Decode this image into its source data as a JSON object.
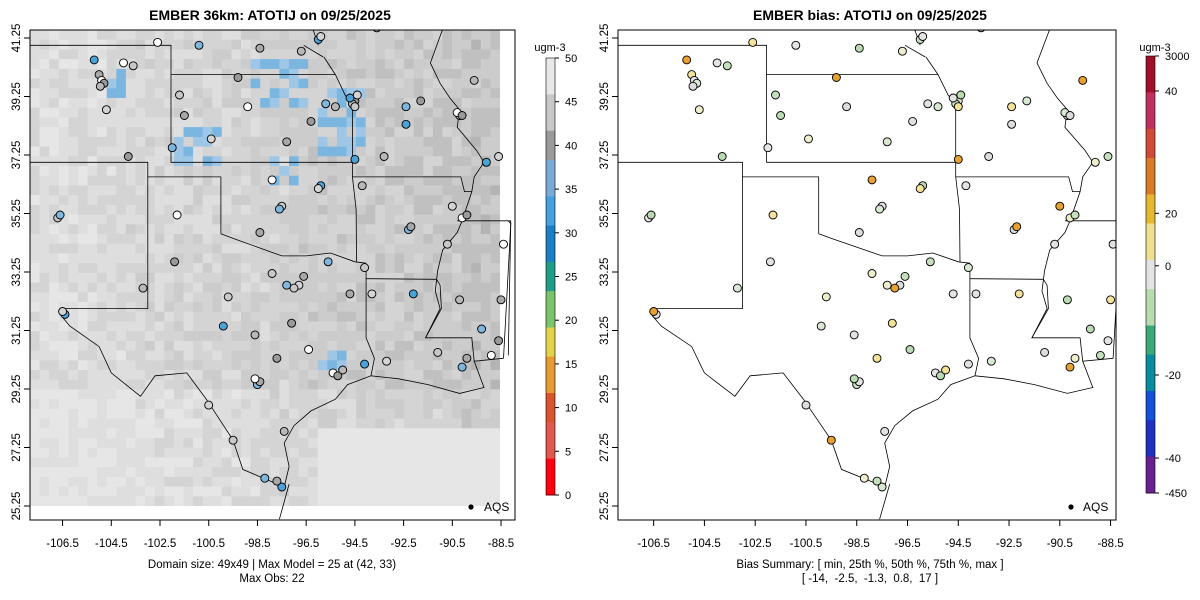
{
  "panels": [
    {
      "title": "EMBER 36km: ATOTIJ on 09/25/2025",
      "colorbar_unit": "ugm-3",
      "colorbar_ticks": [
        "0",
        "5",
        "10",
        "15",
        "20",
        "25",
        "30",
        "35",
        "40",
        "45",
        "50"
      ],
      "colorbar_colors": [
        "#e8e8e8",
        "#c8c8c8",
        "#9a9a9a",
        "#7aaad8",
        "#45a0e0",
        "#1a7fc4",
        "#1f9f8a",
        "#7cc46c",
        "#e4d24a",
        "#e89a34",
        "#d8542e",
        "#e2584e",
        "#ff0010"
      ],
      "caption_lines": [
        "Domain size: 49x49 | Max Model = 25 at (42, 33)",
        "Max Obs: 22"
      ],
      "legend_label": "AQS",
      "x_ticks": [
        "-106.5",
        "-104.5",
        "-102.5",
        "-100.5",
        "-98.5",
        "-96.5",
        "-94.5",
        "-92.5",
        "-90.5",
        "-88.5"
      ],
      "y_ticks": [
        "41.25",
        "39.25",
        "37.25",
        "35.25",
        "33.25",
        "31.25",
        "29.25",
        "27.25",
        "25.25"
      ]
    },
    {
      "title": "EMBER bias: ATOTIJ on 09/25/2025",
      "colorbar_unit": "ugm-3",
      "colorbar_ticks": [
        "3000",
        "40",
        "20",
        "0",
        "-20",
        "-40",
        "-450"
      ],
      "colorbar_colors": [
        "#a0102a",
        "#c03060",
        "#d04a38",
        "#d87a28",
        "#e6b830",
        "#eee090",
        "#e4e4e4",
        "#b6dcb0",
        "#3aa878",
        "#0a8ca0",
        "#1450d8",
        "#2030c0",
        "#6a2090"
      ],
      "caption_lines": [
        "Bias Summary: [ min, 25th %, 50th %, 75th %, max ]",
        "[ -14,  -2.5,  -1.3,  0.8,  17 ]"
      ],
      "legend_label": "AQS",
      "x_ticks": [
        "-106.5",
        "-104.5",
        "-102.5",
        "-100.5",
        "-98.5",
        "-96.5",
        "-94.5",
        "-92.5",
        "-90.5",
        "-88.5"
      ],
      "y_ticks": [
        "41.25",
        "39.25",
        "37.25",
        "35.25",
        "33.25",
        "31.25",
        "29.25",
        "27.25",
        "25.25"
      ]
    }
  ],
  "map": {
    "lon_range": [
      -107.2,
      -88.2
    ],
    "lat_range": [
      25.0,
      41.6
    ],
    "background_fill": "#dcdcdc",
    "ocean_fill": "#e4e4e4",
    "plume_color": "#4aa3d8",
    "site_marker_fill": "#c8c8c8",
    "bias_site_fill": "#d6e8d0"
  }
}
